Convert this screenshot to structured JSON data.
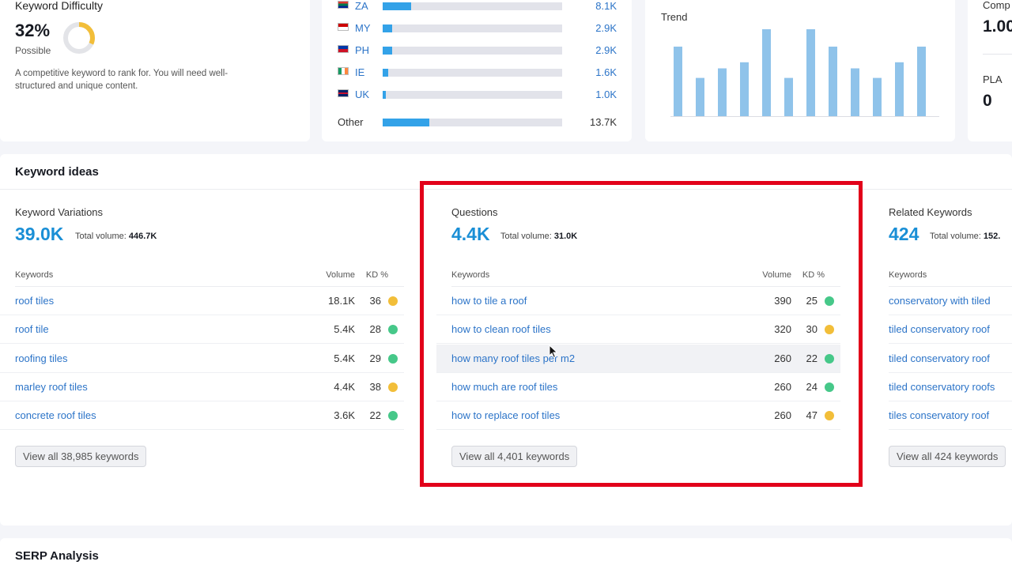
{
  "keyword_difficulty": {
    "title": "Keyword Difficulty",
    "value": "32%",
    "percent": 32,
    "label": "Possible",
    "description": "A competitive keyword to rank for. You will need well-structured and unique content."
  },
  "countries": [
    {
      "code": "ZA",
      "volume": "8.1K",
      "share": 0.16
    },
    {
      "code": "MY",
      "volume": "2.9K",
      "share": 0.055
    },
    {
      "code": "PH",
      "volume": "2.9K",
      "share": 0.055
    },
    {
      "code": "IE",
      "volume": "1.6K",
      "share": 0.03
    },
    {
      "code": "UK",
      "volume": "1.0K",
      "share": 0.016
    },
    {
      "code": "Other",
      "volume": "13.7K",
      "share": 0.26
    }
  ],
  "trend": {
    "title": "Trend",
    "values": [
      0.8,
      0.44,
      0.55,
      0.62,
      1.0,
      0.44,
      1.0,
      0.8,
      0.55,
      0.44,
      0.62,
      0.8
    ]
  },
  "side_metrics": {
    "competition_label": "Comp",
    "competition_value": "1.00",
    "pla_label": "PLA",
    "pla_value": "0"
  },
  "keyword_ideas": {
    "title": "Keyword ideas",
    "columns_header": {
      "keywords": "Keywords",
      "volume": "Volume",
      "kd": "KD %"
    },
    "variations": {
      "title": "Keyword Variations",
      "count": "39.0K",
      "total_label": "Total volume:",
      "total_value": "446.7K",
      "button": "View all 38,985 keywords",
      "rows": [
        {
          "keyword": "roof tiles",
          "volume": "18.1K",
          "kd": "36",
          "color": "#f2be39"
        },
        {
          "keyword": "roof tile",
          "volume": "5.4K",
          "kd": "28",
          "color": "#46c889"
        },
        {
          "keyword": "roofing tiles",
          "volume": "5.4K",
          "kd": "29",
          "color": "#46c889"
        },
        {
          "keyword": "marley roof tiles",
          "volume": "4.4K",
          "kd": "38",
          "color": "#f2be39"
        },
        {
          "keyword": "concrete roof tiles",
          "volume": "3.6K",
          "kd": "22",
          "color": "#46c889"
        }
      ]
    },
    "questions": {
      "title": "Questions",
      "count": "4.4K",
      "total_label": "Total volume:",
      "total_value": "31.0K",
      "button": "View all 4,401 keywords",
      "rows": [
        {
          "keyword": "how to tile a roof",
          "volume": "390",
          "kd": "25",
          "color": "#46c889"
        },
        {
          "keyword": "how to clean roof tiles",
          "volume": "320",
          "kd": "30",
          "color": "#f2be39"
        },
        {
          "keyword": "how many roof tiles per m2",
          "volume": "260",
          "kd": "22",
          "color": "#46c889"
        },
        {
          "keyword": "how much are roof tiles",
          "volume": "260",
          "kd": "24",
          "color": "#46c889"
        },
        {
          "keyword": "how to replace roof tiles",
          "volume": "260",
          "kd": "47",
          "color": "#f2be39"
        }
      ]
    },
    "related": {
      "title": "Related Keywords",
      "count": "424",
      "total_label": "Total volume:",
      "total_value": "152.",
      "button": "View all 424 keywords",
      "rows": [
        {
          "keyword": "conservatory with tiled"
        },
        {
          "keyword": "tiled conservatory roof"
        },
        {
          "keyword": "tiled conservatory roof"
        },
        {
          "keyword": "tiled conservatory roofs"
        },
        {
          "keyword": "tiles conservatory roof"
        }
      ]
    }
  },
  "serp": {
    "title": "SERP Analysis"
  }
}
